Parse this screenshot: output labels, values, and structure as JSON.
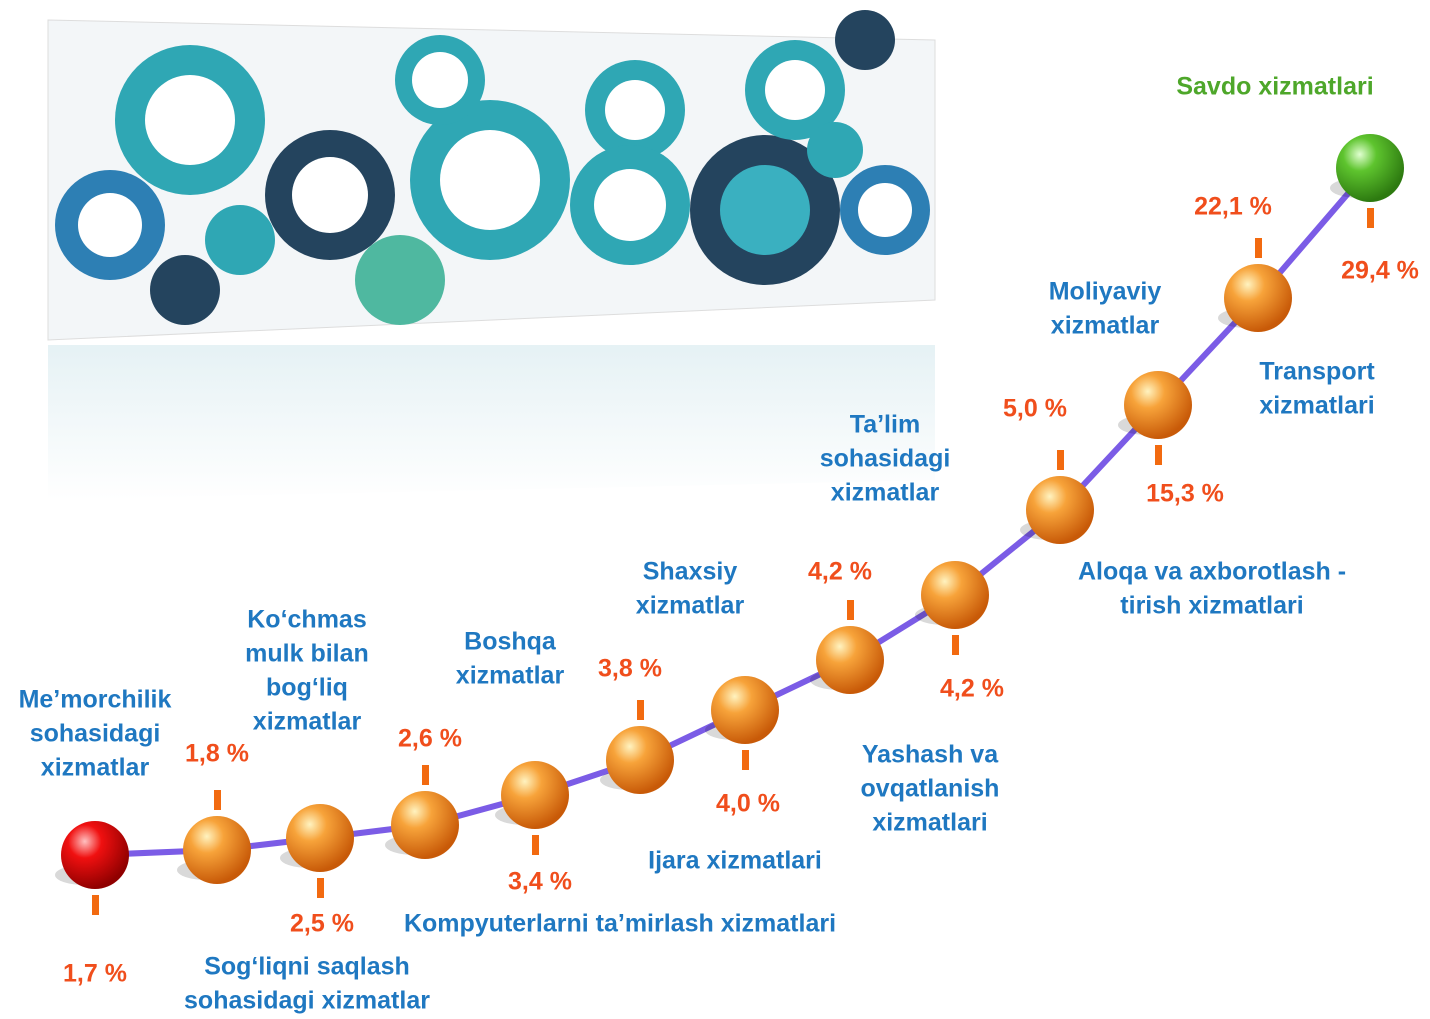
{
  "nodes": [
    {
      "label": [
        "Me’morchilik",
        "sohasidagi",
        "xizmatlar"
      ],
      "percent": "1,7 %"
    },
    {
      "label": [
        "Sog‘liqni saqlash",
        "sohasidagi xizmatlar"
      ],
      "percent": "1,8 %"
    },
    {
      "label": [
        "Ko‘chmas",
        "mulk bilan",
        "bog‘liq",
        "xizmatlar"
      ],
      "percent": "2,5 %"
    },
    {
      "label": [
        "Kompyuterlarni ta’mirlash xizmatlari"
      ],
      "percent": "2,6 %"
    },
    {
      "label": [
        "Boshqa",
        "xizmatlar"
      ],
      "percent": "3,4 %"
    },
    {
      "label": [
        "Shaxsiy",
        "xizmatlar"
      ],
      "percent": "3,8 %"
    },
    {
      "label": [
        "Ijara xizmatlari"
      ],
      "percent": "4,0 %"
    },
    {
      "label": [
        "Yashash va",
        "ovqatlanish",
        "xizmatlari"
      ],
      "percent": "4,2 %"
    },
    {
      "label": [
        "Ta’lim",
        "sohasidagi",
        "xizmatlar"
      ],
      "percent": "4,2 %"
    },
    {
      "label": [
        "Aloqa va axborotlash -",
        "tirish xizmatlari"
      ],
      "percent": "5,0 %"
    },
    {
      "label": [
        "Moliyaviy",
        "xizmatlar"
      ],
      "percent": "15,3 %"
    },
    {
      "label": [
        "Transport",
        "xizmatlari"
      ],
      "percent": "22,1 %"
    },
    {
      "label": [
        "Savdo xizmatlari"
      ],
      "percent": "29,4 %"
    }
  ]
}
